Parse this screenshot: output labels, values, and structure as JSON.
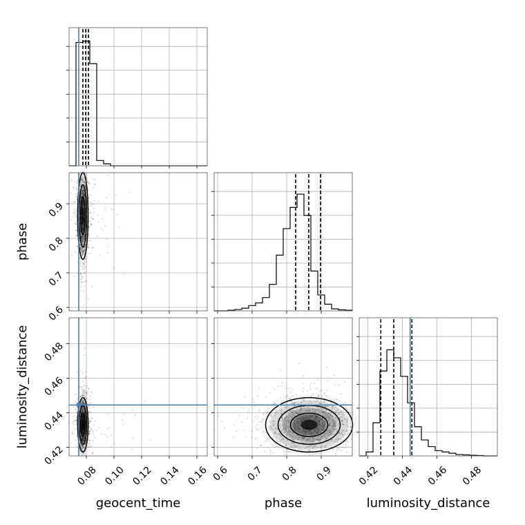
{
  "chart_data": {
    "type": "corner",
    "parameters": [
      "geocent_time",
      "phase",
      "luminosity_distance"
    ],
    "axes": {
      "geocent_time": {
        "range": [
          0.0675,
          0.1675
        ],
        "ticks": [
          0.08,
          0.1,
          0.12,
          0.14,
          0.16
        ],
        "tick_labels": [
          "0.08",
          "0.10",
          "0.12",
          "0.14",
          "0.16"
        ]
      },
      "phase": {
        "range": [
          0.59,
          0.99
        ],
        "ticks": [
          0.6,
          0.7,
          0.8,
          0.9
        ],
        "tick_labels": [
          "0.6",
          "0.7",
          "0.8",
          "0.9"
        ]
      },
      "luminosity_distance": {
        "range": [
          0.415,
          0.495
        ],
        "ticks": [
          0.42,
          0.44,
          0.46,
          0.48
        ],
        "tick_labels": [
          "0.42",
          "0.44",
          "0.46",
          "0.48"
        ]
      }
    },
    "truths": {
      "geocent_time": 0.0745,
      "luminosity_distance": 0.4445
    },
    "truth_color": "#4682b4",
    "histograms": {
      "geocent_time": {
        "bins": [
          0.0675,
          0.0725,
          0.0775,
          0.0825,
          0.0875,
          0.0925,
          0.0975
        ],
        "counts": [
          0.0,
          0.93,
          0.94,
          0.77,
          0.04,
          0.015
        ],
        "quantiles": [
          0.0775,
          0.0795,
          0.0815
        ]
      },
      "phase": {
        "bins": [
          0.59,
          0.61,
          0.63,
          0.65,
          0.67,
          0.69,
          0.71,
          0.73,
          0.75,
          0.77,
          0.79,
          0.81,
          0.83,
          0.85,
          0.87,
          0.89,
          0.91,
          0.93,
          0.95,
          0.97,
          0.99
        ],
        "counts": [
          0.0,
          0.0,
          0.005,
          0.01,
          0.02,
          0.04,
          0.06,
          0.1,
          0.2,
          0.42,
          0.62,
          0.78,
          0.88,
          0.72,
          0.3,
          0.12,
          0.05,
          0.015,
          0.008,
          0.005
        ],
        "quantiles": [
          0.826,
          0.864,
          0.898
        ]
      },
      "luminosity_distance": {
        "bins": [
          0.415,
          0.419,
          0.423,
          0.427,
          0.431,
          0.435,
          0.439,
          0.443,
          0.447,
          0.451,
          0.455,
          0.459,
          0.463,
          0.467,
          0.471,
          0.475,
          0.479,
          0.483,
          0.487
        ],
        "counts": [
          0.0,
          0.03,
          0.25,
          0.64,
          0.8,
          0.74,
          0.6,
          0.4,
          0.22,
          0.12,
          0.07,
          0.04,
          0.03,
          0.02,
          0.01,
          0.008,
          0.005,
          0.003
        ],
        "quantiles": [
          0.4275,
          0.435,
          0.4455
        ]
      }
    },
    "posterior_centers": {
      "geocent_time": 0.0775,
      "phase": 0.865,
      "luminosity_distance": 0.433
    },
    "posterior_widths": {
      "geocent_time": 0.0018,
      "phase": 0.06,
      "luminosity_distance": 0.0075
    }
  }
}
